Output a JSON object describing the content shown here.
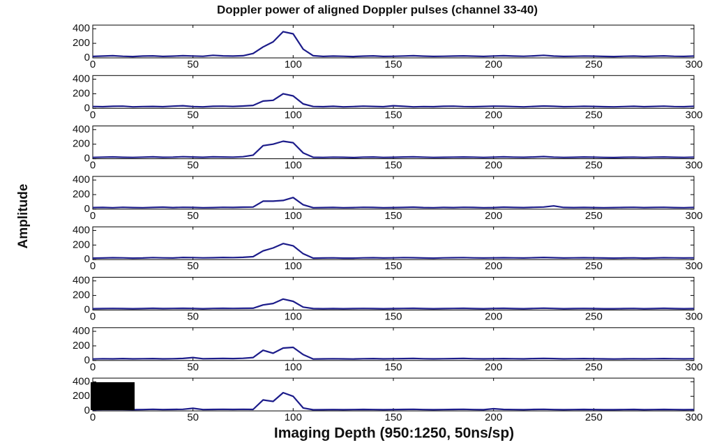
{
  "title": "Doppler power of aligned Doppler pulses (channel 33-40)",
  "xlabel": "Imaging Depth (950:1250, 50ns/sp)",
  "ylabel": "Amplitude",
  "chart_data": [
    {
      "type": "line",
      "color": "#1c1c8a",
      "xlim": [
        0,
        300
      ],
      "ylim": [
        0,
        450
      ],
      "xticks": [
        0,
        50,
        100,
        150,
        200,
        250,
        300
      ],
      "yticks": [
        0,
        200,
        400
      ],
      "x": [
        0,
        5,
        10,
        15,
        20,
        25,
        30,
        35,
        40,
        45,
        50,
        55,
        60,
        65,
        70,
        75,
        80,
        85,
        90,
        95,
        100,
        105,
        110,
        115,
        120,
        125,
        130,
        135,
        140,
        145,
        150,
        155,
        160,
        165,
        170,
        175,
        180,
        185,
        190,
        195,
        200,
        205,
        210,
        215,
        220,
        225,
        230,
        235,
        240,
        245,
        250,
        255,
        260,
        265,
        270,
        275,
        280,
        285,
        290,
        295,
        300
      ],
      "values": [
        20,
        25,
        30,
        22,
        18,
        25,
        28,
        20,
        24,
        30,
        26,
        22,
        35,
        28,
        25,
        30,
        60,
        150,
        220,
        360,
        330,
        120,
        30,
        20,
        25,
        22,
        18,
        24,
        28,
        20,
        22,
        26,
        30,
        24,
        20,
        22,
        25,
        28,
        24,
        20,
        26,
        30,
        25,
        22,
        28,
        35,
        25,
        20,
        22,
        26,
        24,
        20,
        18,
        22,
        25,
        20,
        24,
        28,
        22,
        20,
        25
      ]
    },
    {
      "type": "line",
      "color": "#1c1c8a",
      "xlim": [
        0,
        300
      ],
      "ylim": [
        0,
        450
      ],
      "xticks": [
        0,
        50,
        100,
        150,
        200,
        250,
        300
      ],
      "yticks": [
        0,
        200,
        400
      ],
      "x": [
        0,
        5,
        10,
        15,
        20,
        25,
        30,
        35,
        40,
        45,
        50,
        55,
        60,
        65,
        70,
        75,
        80,
        85,
        90,
        95,
        100,
        105,
        110,
        115,
        120,
        125,
        130,
        135,
        140,
        145,
        150,
        155,
        160,
        165,
        170,
        175,
        180,
        185,
        190,
        195,
        200,
        205,
        210,
        215,
        220,
        225,
        230,
        235,
        240,
        245,
        250,
        255,
        260,
        265,
        270,
        275,
        280,
        285,
        290,
        295,
        300
      ],
      "values": [
        25,
        22,
        28,
        30,
        20,
        24,
        26,
        22,
        30,
        35,
        24,
        20,
        28,
        30,
        26,
        32,
        40,
        100,
        110,
        200,
        170,
        60,
        25,
        22,
        28,
        20,
        24,
        30,
        26,
        22,
        35,
        28,
        20,
        24,
        22,
        28,
        30,
        24,
        22,
        26,
        30,
        28,
        24,
        20,
        26,
        32,
        28,
        22,
        24,
        28,
        26,
        22,
        20,
        24,
        28,
        22,
        26,
        30,
        24,
        22,
        28
      ]
    },
    {
      "type": "line",
      "color": "#1c1c8a",
      "xlim": [
        0,
        300
      ],
      "ylim": [
        0,
        450
      ],
      "xticks": [
        0,
        50,
        100,
        150,
        200,
        250,
        300
      ],
      "yticks": [
        0,
        200,
        400
      ],
      "x": [
        0,
        5,
        10,
        15,
        20,
        25,
        30,
        35,
        40,
        45,
        50,
        55,
        60,
        65,
        70,
        75,
        80,
        85,
        90,
        95,
        100,
        105,
        110,
        115,
        120,
        125,
        130,
        135,
        140,
        145,
        150,
        155,
        160,
        165,
        170,
        175,
        180,
        185,
        190,
        195,
        200,
        205,
        210,
        215,
        220,
        225,
        230,
        235,
        240,
        245,
        250,
        255,
        260,
        265,
        270,
        275,
        280,
        285,
        290,
        295,
        300
      ],
      "values": [
        18,
        22,
        25,
        20,
        18,
        22,
        26,
        20,
        22,
        28,
        24,
        20,
        26,
        24,
        22,
        28,
        50,
        180,
        200,
        240,
        220,
        80,
        20,
        18,
        22,
        20,
        16,
        22,
        24,
        18,
        20,
        24,
        26,
        22,
        18,
        20,
        22,
        24,
        22,
        18,
        22,
        26,
        22,
        20,
        24,
        30,
        22,
        18,
        20,
        24,
        22,
        18,
        16,
        20,
        22,
        18,
        22,
        24,
        20,
        18,
        22
      ]
    },
    {
      "type": "line",
      "color": "#1c1c8a",
      "xlim": [
        0,
        300
      ],
      "ylim": [
        0,
        450
      ],
      "xticks": [
        0,
        50,
        100,
        150,
        200,
        250,
        300
      ],
      "yticks": [
        0,
        200,
        400
      ],
      "x": [
        0,
        5,
        10,
        15,
        20,
        25,
        30,
        35,
        40,
        45,
        50,
        55,
        60,
        65,
        70,
        75,
        80,
        85,
        90,
        95,
        100,
        105,
        110,
        115,
        120,
        125,
        130,
        135,
        140,
        145,
        150,
        155,
        160,
        165,
        170,
        175,
        180,
        185,
        190,
        195,
        200,
        205,
        210,
        215,
        220,
        225,
        230,
        235,
        240,
        245,
        250,
        255,
        260,
        265,
        270,
        275,
        280,
        285,
        290,
        295,
        300
      ],
      "values": [
        22,
        24,
        20,
        26,
        22,
        20,
        24,
        28,
        22,
        26,
        24,
        20,
        22,
        26,
        24,
        28,
        30,
        110,
        110,
        120,
        160,
        60,
        20,
        22,
        24,
        20,
        22,
        26,
        24,
        20,
        22,
        24,
        28,
        22,
        20,
        24,
        22,
        26,
        24,
        20,
        22,
        28,
        24,
        22,
        26,
        30,
        45,
        24,
        22,
        24,
        22,
        20,
        22,
        24,
        26,
        22,
        24,
        26,
        22,
        20,
        24
      ]
    },
    {
      "type": "line",
      "color": "#1c1c8a",
      "xlim": [
        0,
        300
      ],
      "ylim": [
        0,
        450
      ],
      "xticks": [
        0,
        50,
        100,
        150,
        200,
        250,
        300
      ],
      "yticks": [
        0,
        200,
        400
      ],
      "x": [
        0,
        5,
        10,
        15,
        20,
        25,
        30,
        35,
        40,
        45,
        50,
        55,
        60,
        65,
        70,
        75,
        80,
        85,
        90,
        95,
        100,
        105,
        110,
        115,
        120,
        125,
        130,
        135,
        140,
        145,
        150,
        155,
        160,
        165,
        170,
        175,
        180,
        185,
        190,
        195,
        200,
        205,
        210,
        215,
        220,
        225,
        230,
        235,
        240,
        245,
        250,
        255,
        260,
        265,
        270,
        275,
        280,
        285,
        290,
        295,
        300
      ],
      "values": [
        20,
        22,
        26,
        24,
        20,
        22,
        28,
        24,
        22,
        30,
        28,
        24,
        26,
        30,
        28,
        32,
        40,
        120,
        160,
        220,
        190,
        80,
        20,
        22,
        24,
        20,
        20,
        24,
        26,
        22,
        24,
        28,
        26,
        22,
        20,
        24,
        26,
        28,
        24,
        22,
        24,
        26,
        24,
        22,
        26,
        30,
        26,
        22,
        24,
        26,
        24,
        22,
        20,
        22,
        24,
        20,
        22,
        26,
        24,
        22,
        24
      ]
    },
    {
      "type": "line",
      "color": "#1c1c8a",
      "xlim": [
        0,
        300
      ],
      "ylim": [
        0,
        450
      ],
      "xticks": [
        0,
        50,
        100,
        150,
        200,
        250,
        300
      ],
      "yticks": [
        0,
        200,
        400
      ],
      "x": [
        0,
        5,
        10,
        15,
        20,
        25,
        30,
        35,
        40,
        45,
        50,
        55,
        60,
        65,
        70,
        75,
        80,
        85,
        90,
        95,
        100,
        105,
        110,
        115,
        120,
        125,
        130,
        135,
        140,
        145,
        150,
        155,
        160,
        165,
        170,
        175,
        180,
        185,
        190,
        195,
        200,
        205,
        210,
        215,
        220,
        225,
        230,
        235,
        240,
        245,
        250,
        255,
        260,
        265,
        270,
        275,
        280,
        285,
        290,
        295,
        300
      ],
      "values": [
        18,
        20,
        22,
        20,
        18,
        20,
        24,
        20,
        22,
        24,
        22,
        18,
        22,
        24,
        22,
        24,
        25,
        70,
        90,
        150,
        120,
        40,
        20,
        18,
        20,
        18,
        20,
        22,
        20,
        18,
        20,
        22,
        24,
        20,
        18,
        20,
        22,
        24,
        20,
        18,
        22,
        24,
        20,
        18,
        22,
        26,
        22,
        18,
        20,
        22,
        20,
        18,
        18,
        20,
        22,
        18,
        20,
        24,
        20,
        18,
        20
      ]
    },
    {
      "type": "line",
      "color": "#1c1c8a",
      "xlim": [
        0,
        300
      ],
      "ylim": [
        0,
        450
      ],
      "xticks": [
        0,
        50,
        100,
        150,
        200,
        250,
        300
      ],
      "yticks": [
        0,
        200,
        400
      ],
      "x": [
        0,
        5,
        10,
        15,
        20,
        25,
        30,
        35,
        40,
        45,
        50,
        55,
        60,
        65,
        70,
        75,
        80,
        85,
        90,
        95,
        100,
        105,
        110,
        115,
        120,
        125,
        130,
        135,
        140,
        145,
        150,
        155,
        160,
        165,
        170,
        175,
        180,
        185,
        190,
        195,
        200,
        205,
        210,
        215,
        220,
        225,
        230,
        235,
        240,
        245,
        250,
        255,
        260,
        265,
        270,
        275,
        280,
        285,
        290,
        295,
        300
      ],
      "values": [
        20,
        24,
        22,
        26,
        22,
        24,
        26,
        22,
        24,
        28,
        40,
        24,
        26,
        28,
        26,
        30,
        40,
        140,
        100,
        170,
        180,
        80,
        20,
        22,
        24,
        22,
        20,
        24,
        26,
        22,
        24,
        26,
        28,
        24,
        22,
        24,
        26,
        28,
        24,
        22,
        24,
        26,
        24,
        22,
        26,
        28,
        26,
        22,
        24,
        26,
        24,
        22,
        20,
        22,
        24,
        22,
        24,
        26,
        24,
        22,
        24
      ]
    },
    {
      "type": "line",
      "color": "#1c1c8a",
      "xlim": [
        0,
        300
      ],
      "ylim": [
        0,
        450
      ],
      "xticks": [
        0,
        50,
        100,
        150,
        200,
        250,
        300
      ],
      "yticks": [
        0,
        200,
        400
      ],
      "x": [
        0,
        5,
        10,
        15,
        20,
        25,
        30,
        35,
        40,
        45,
        50,
        55,
        60,
        65,
        70,
        75,
        80,
        85,
        90,
        95,
        100,
        105,
        110,
        115,
        120,
        125,
        130,
        135,
        140,
        145,
        150,
        155,
        160,
        165,
        170,
        175,
        180,
        185,
        190,
        195,
        200,
        205,
        210,
        215,
        220,
        225,
        230,
        235,
        240,
        245,
        250,
        255,
        260,
        265,
        270,
        275,
        280,
        285,
        290,
        295,
        300
      ],
      "values": [
        16,
        18,
        20,
        18,
        16,
        18,
        22,
        18,
        20,
        22,
        35,
        18,
        20,
        22,
        20,
        22,
        20,
        150,
        130,
        250,
        200,
        40,
        15,
        16,
        18,
        16,
        18,
        20,
        18,
        16,
        18,
        20,
        22,
        18,
        16,
        18,
        20,
        22,
        18,
        16,
        30,
        20,
        18,
        16,
        20,
        22,
        18,
        16,
        18,
        20,
        18,
        16,
        16,
        18,
        20,
        16,
        18,
        20,
        18,
        16,
        18
      ]
    }
  ]
}
